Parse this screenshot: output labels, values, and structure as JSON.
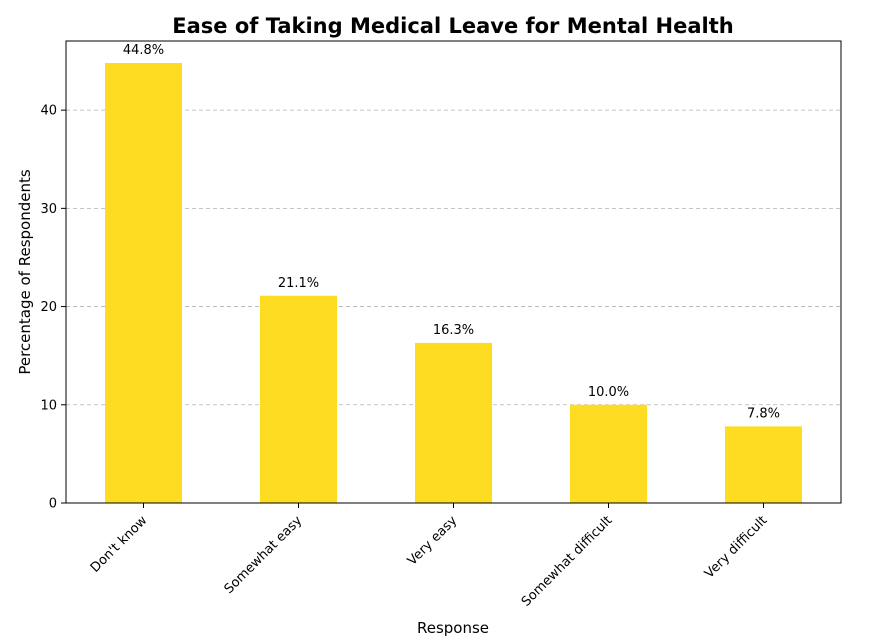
{
  "chart_data": {
    "type": "bar",
    "title": "Ease of Taking Medical Leave for Mental Health",
    "xlabel": "Response",
    "ylabel": "Percentage of Respondents",
    "categories": [
      "Don't know",
      "Somewhat easy",
      "Very easy",
      "Somewhat difficult",
      "Very difficult"
    ],
    "values": [
      44.8,
      21.1,
      16.3,
      10.0,
      7.8
    ],
    "data_labels": [
      "44.8%",
      "21.1%",
      "16.3%",
      "10.0%",
      "7.8%"
    ],
    "yticks": [
      0,
      10,
      20,
      30,
      40
    ],
    "ylim": [
      0,
      47.04
    ],
    "grid": "y-dashed",
    "legend": "none",
    "bar_color": "#fddc22"
  }
}
